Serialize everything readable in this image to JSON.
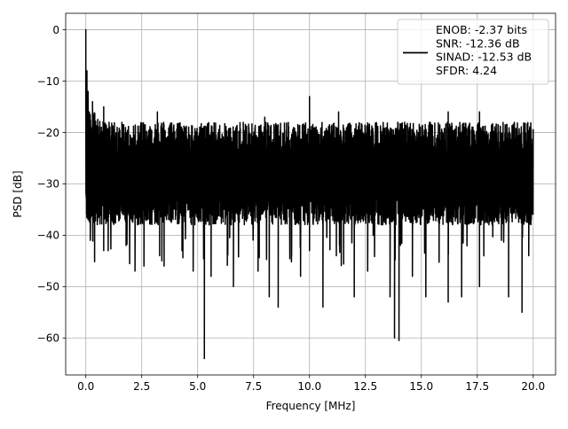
{
  "chart_data": {
    "type": "line",
    "title": "",
    "xlabel": "Frequency [MHz]",
    "ylabel": "PSD [dB]",
    "xlim": [
      -0.9,
      21.0
    ],
    "ylim": [
      -67.2,
      3.2
    ],
    "grid": true,
    "legend_position": "top-right",
    "x_ticks": [
      0.0,
      2.5,
      5.0,
      7.5,
      10.0,
      12.5,
      15.0,
      17.5,
      20.0
    ],
    "x_tick_labels": [
      "0.0",
      "2.5",
      "5.0",
      "7.5",
      "10.0",
      "12.5",
      "15.0",
      "17.5",
      "20.0"
    ],
    "y_ticks": [
      0,
      -10,
      -20,
      -30,
      -40,
      -50,
      -60
    ],
    "y_tick_labels": [
      "0",
      "−10",
      "−20",
      "−30",
      "−40",
      "−50",
      "−60"
    ],
    "legend": {
      "lines": [
        "ENOB: -2.37 bits",
        "SNR: -12.36 dB",
        "SINAD: -12.53 dB",
        "SFDR: 4.24"
      ],
      "color": "#000000"
    },
    "series": [
      {
        "color": "#000000",
        "x_range": [
          0.0,
          20.0
        ],
        "noise_band_db": [
          -36,
          -18
        ],
        "peaks": [
          {
            "x": 0.0,
            "y": 0.0
          },
          {
            "x": 0.05,
            "y": -8.0
          },
          {
            "x": 0.1,
            "y": -12.0
          },
          {
            "x": 0.15,
            "y": -16.0
          },
          {
            "x": 0.3,
            "y": -14.0
          }
        ],
        "troughs": [
          {
            "x": 0.15,
            "y": -29.0
          },
          {
            "x": 0.2,
            "y": -41.0
          },
          {
            "x": 0.8,
            "y": -43.0
          },
          {
            "x": 1.0,
            "y": -43.0
          },
          {
            "x": 1.8,
            "y": -42.0
          },
          {
            "x": 2.2,
            "y": -47.0
          },
          {
            "x": 2.6,
            "y": -46.0
          },
          {
            "x": 3.3,
            "y": -44.0
          },
          {
            "x": 3.4,
            "y": -45.0
          },
          {
            "x": 3.5,
            "y": -46.0
          },
          {
            "x": 4.3,
            "y": -43.0
          },
          {
            "x": 4.8,
            "y": -47.0
          },
          {
            "x": 5.3,
            "y": -64.0
          },
          {
            "x": 5.6,
            "y": -48.0
          },
          {
            "x": 6.6,
            "y": -50.0
          },
          {
            "x": 7.7,
            "y": -47.0
          },
          {
            "x": 8.2,
            "y": -52.0
          },
          {
            "x": 8.6,
            "y": -54.0
          },
          {
            "x": 9.2,
            "y": -44.0
          },
          {
            "x": 9.6,
            "y": -48.0
          },
          {
            "x": 10.0,
            "y": -43.0
          },
          {
            "x": 10.6,
            "y": -54.0
          },
          {
            "x": 11.2,
            "y": -44.0
          },
          {
            "x": 12.0,
            "y": -52.0
          },
          {
            "x": 12.6,
            "y": -47.0
          },
          {
            "x": 13.6,
            "y": -52.0
          },
          {
            "x": 13.8,
            "y": -60.0
          },
          {
            "x": 14.0,
            "y": -60.5
          },
          {
            "x": 14.6,
            "y": -48.0
          },
          {
            "x": 15.2,
            "y": -52.0
          },
          {
            "x": 16.2,
            "y": -53.0
          },
          {
            "x": 16.8,
            "y": -52.0
          },
          {
            "x": 17.6,
            "y": -50.0
          },
          {
            "x": 18.9,
            "y": -52.0
          },
          {
            "x": 19.5,
            "y": -55.0
          },
          {
            "x": 19.8,
            "y": -44.0
          }
        ],
        "spikes_up": [
          {
            "x": 0.8,
            "y": -15.0
          },
          {
            "x": 3.2,
            "y": -16.0
          },
          {
            "x": 8.0,
            "y": -17.0
          },
          {
            "x": 10.0,
            "y": -13.0
          },
          {
            "x": 11.3,
            "y": -16.0
          },
          {
            "x": 16.2,
            "y": -16.0
          },
          {
            "x": 17.6,
            "y": -16.0
          }
        ]
      }
    ]
  }
}
